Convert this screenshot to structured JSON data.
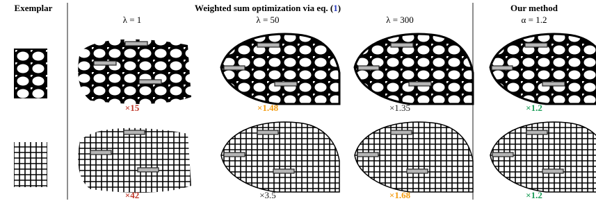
{
  "header": {
    "exemplar": "Exemplar",
    "weighted": {
      "text": "Weighted sum optimization via eq. (",
      "ref": "1",
      "close": ")"
    },
    "ours": "Our method"
  },
  "params": [
    "λ = 1",
    "λ = 50",
    "λ = 300",
    "α = 1.2"
  ],
  "rows": [
    {
      "factors": [
        {
          "text": "×15",
          "color": "#c0392b"
        },
        {
          "text": "×1.48",
          "color": "#f39c12"
        },
        {
          "text": "×1.35",
          "color": "#222222"
        },
        {
          "text": "×1.2",
          "color": "#1e9e5a"
        }
      ]
    },
    {
      "factors": [
        {
          "text": "×42",
          "color": "#c0392b"
        },
        {
          "text": "×3.5",
          "color": "#222222"
        },
        {
          "text": "×1.68",
          "color": "#f39c12"
        },
        {
          "text": "×1.2",
          "color": "#1e9e5a"
        }
      ]
    }
  ]
}
